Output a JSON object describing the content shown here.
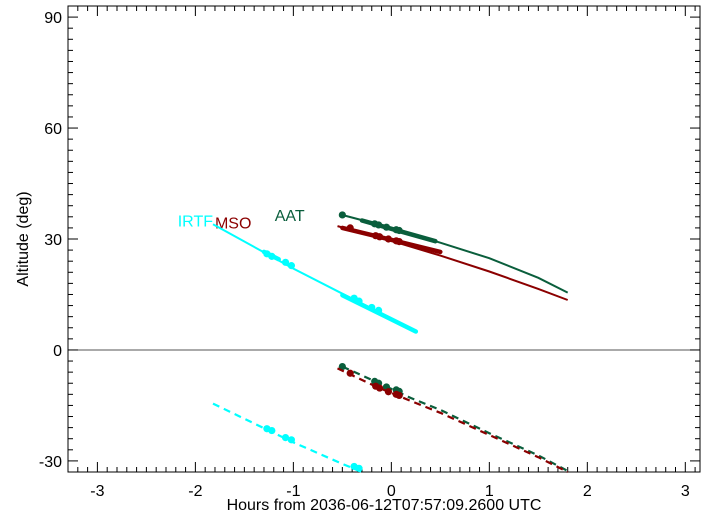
{
  "chart_data": {
    "type": "line",
    "title": "",
    "xlabel": "Hours from 2036-06-12T07:57:09.2600 UTC",
    "ylabel": "Altitude (deg)",
    "xlim": [
      -3.3,
      3.15
    ],
    "ylim": [
      -33,
      93
    ],
    "xticks": [
      -3,
      -2,
      -1,
      0,
      1,
      2,
      3
    ],
    "yticks": [
      -30,
      0,
      30,
      60,
      90
    ],
    "grid": false,
    "legend": "inline labels",
    "zero_line": 0,
    "colors": {
      "AAT": "#0a5e3c",
      "MSO": "#8b0000",
      "IRTF": "#00ffff"
    },
    "series": [
      {
        "name": "AAT",
        "color": "#0a5e3c",
        "label_at": [
          -1.19,
          36.5
        ],
        "curve": [
          [
            -0.5,
            36.5
          ],
          [
            0.0,
            33.0
          ],
          [
            0.5,
            29.0
          ],
          [
            1.0,
            24.8
          ],
          [
            1.5,
            19.5
          ],
          [
            1.8,
            15.5
          ]
        ],
        "thick_segments": [
          [
            [
              -0.3,
              35.0
            ],
            [
              0.45,
              29.4
            ]
          ]
        ],
        "dots": [
          [
            -0.5,
            36.5
          ],
          [
            -0.17,
            34.1
          ],
          [
            -0.13,
            33.8
          ],
          [
            -0.05,
            33.2
          ],
          [
            0.05,
            32.5
          ],
          [
            0.08,
            32.3
          ]
        ],
        "dashed": [
          [
            -0.5,
            -4.5
          ],
          [
            -0.15,
            -8.7
          ],
          [
            0.2,
            -13.0
          ],
          [
            0.5,
            -16.2
          ],
          [
            1.0,
            -22.5
          ],
          [
            1.5,
            -28.5
          ],
          [
            1.82,
            -33.0
          ]
        ],
        "dashed_dots": [
          [
            -0.5,
            -4.5
          ],
          [
            -0.17,
            -8.5
          ],
          [
            -0.13,
            -9.0
          ],
          [
            -0.05,
            -10.0
          ],
          [
            0.05,
            -10.8
          ],
          [
            0.08,
            -11.2
          ]
        ]
      },
      {
        "name": "MSO",
        "color": "#8b0000",
        "label_at": [
          -1.8,
          34.5
        ],
        "curve": [
          [
            -0.55,
            33.5
          ],
          [
            0.0,
            29.5
          ],
          [
            0.5,
            25.5
          ],
          [
            1.0,
            21.2
          ],
          [
            1.5,
            16.5
          ],
          [
            1.8,
            13.5
          ]
        ],
        "thick_segments": [
          [
            [
              -0.5,
              33.0
            ],
            [
              0.5,
              26.5
            ]
          ]
        ],
        "dots": [
          [
            -0.42,
            33.0
          ],
          [
            -0.16,
            30.9
          ],
          [
            -0.12,
            30.6
          ],
          [
            -0.03,
            30.0
          ],
          [
            0.05,
            29.5
          ],
          [
            0.08,
            29.3
          ]
        ],
        "dashed": [
          [
            -0.55,
            -5.0
          ],
          [
            -0.15,
            -10.0
          ],
          [
            0.2,
            -13.8
          ],
          [
            0.5,
            -17.0
          ],
          [
            1.0,
            -23.0
          ],
          [
            1.5,
            -29.0
          ],
          [
            1.8,
            -33.0
          ]
        ],
        "dashed_dots": [
          [
            -0.42,
            -6.3
          ],
          [
            -0.16,
            -9.8
          ],
          [
            -0.12,
            -10.3
          ],
          [
            -0.03,
            -11.3
          ],
          [
            0.05,
            -12.0
          ],
          [
            0.08,
            -12.3
          ]
        ]
      },
      {
        "name": "IRTF",
        "color": "#00ffff",
        "label_at": [
          -2.18,
          35.0
        ],
        "curve": [
          [
            -1.82,
            34.0
          ],
          [
            -1.0,
            22.0
          ],
          [
            -0.5,
            15.2
          ],
          [
            0.0,
            8.5
          ],
          [
            0.25,
            5.2
          ]
        ],
        "thick_segments": [
          [
            [
              -1.3,
              26.5
            ],
            [
              -1.15,
              24.5
            ]
          ],
          [
            [
              -0.5,
              14.8
            ],
            [
              0.25,
              5.0
            ]
          ]
        ],
        "dots": [
          [
            -1.27,
            26.0
          ],
          [
            -1.22,
            25.3
          ],
          [
            -1.08,
            23.7
          ],
          [
            -1.02,
            22.8
          ],
          [
            -0.38,
            14.0
          ],
          [
            -0.33,
            13.2
          ],
          [
            -0.2,
            11.5
          ],
          [
            -0.13,
            10.7
          ]
        ],
        "dashed": [
          [
            -1.82,
            -14.5
          ],
          [
            -1.0,
            -25.0
          ],
          [
            -0.5,
            -30.8
          ],
          [
            -0.3,
            -33.0
          ]
        ],
        "dashed_dots": [
          [
            -1.27,
            -21.3
          ],
          [
            -1.22,
            -21.8
          ],
          [
            -1.08,
            -23.7
          ],
          [
            -1.02,
            -24.3
          ],
          [
            -0.38,
            -31.5
          ],
          [
            -0.33,
            -32.0
          ]
        ]
      }
    ]
  }
}
